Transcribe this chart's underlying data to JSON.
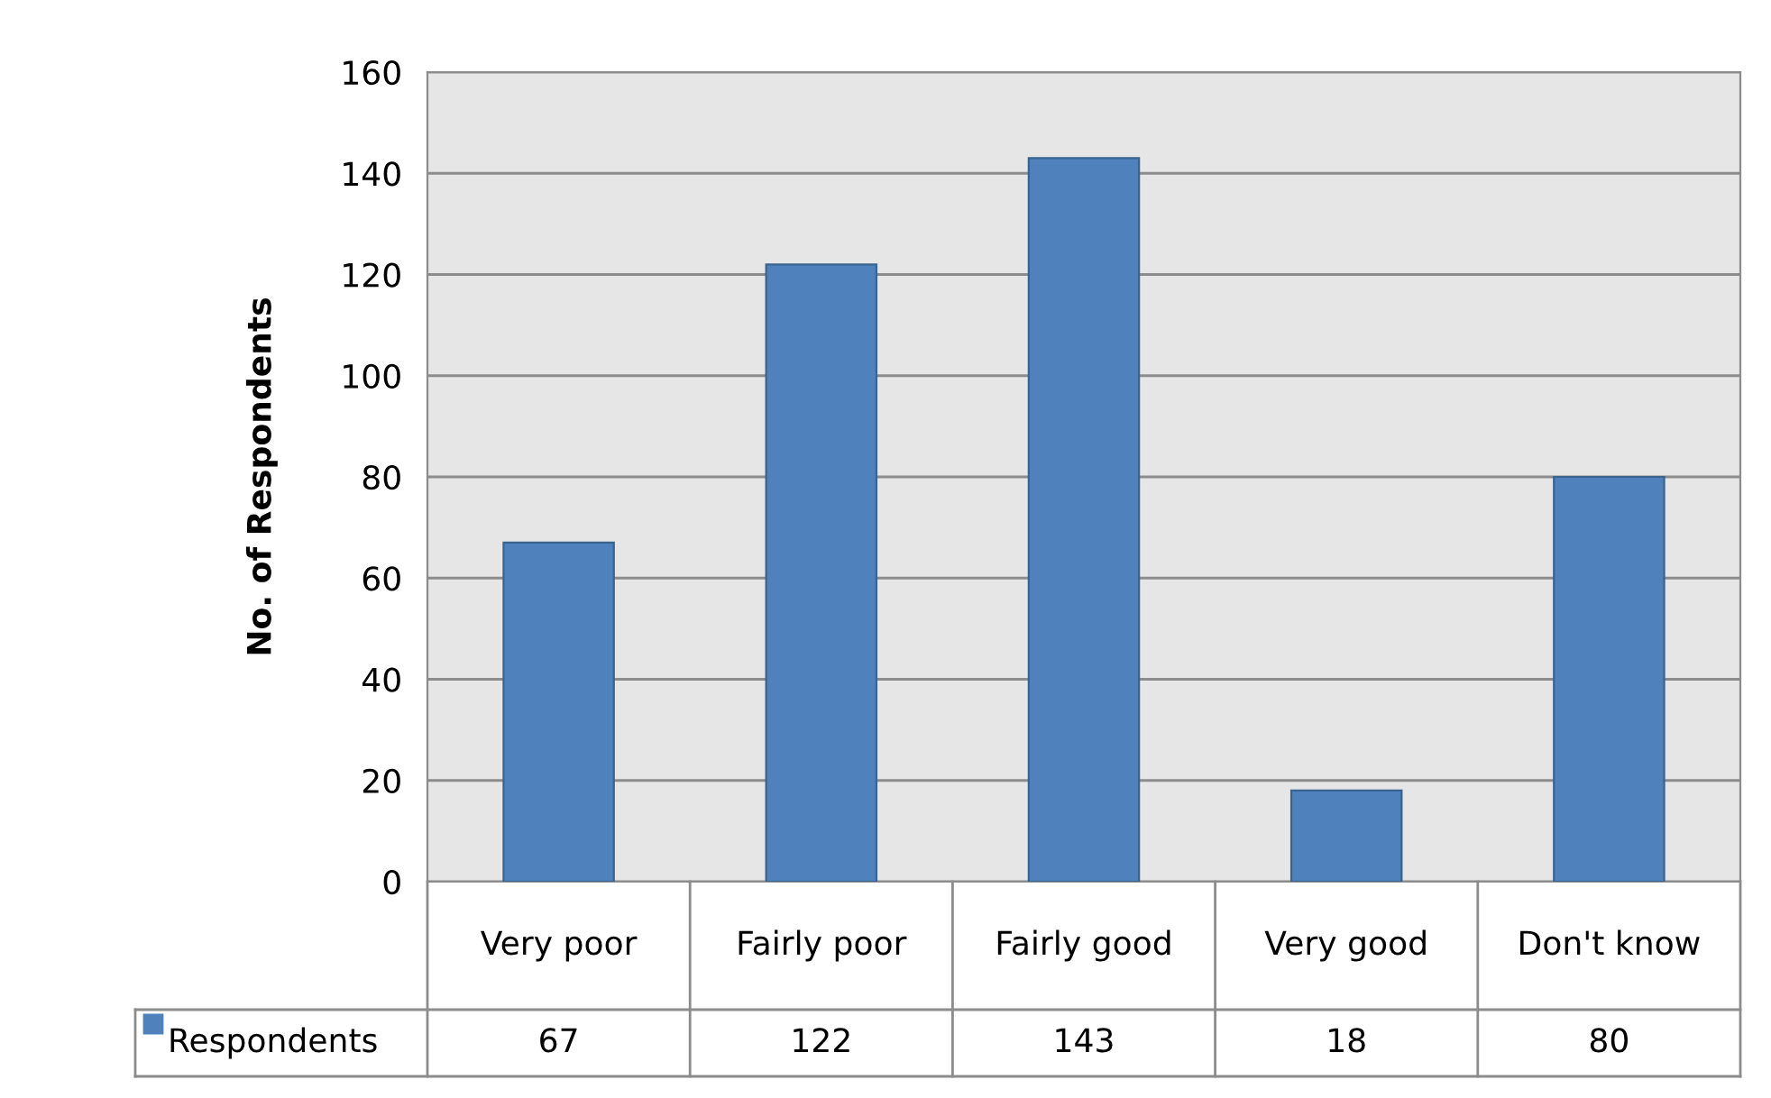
{
  "chart_data": {
    "type": "bar",
    "ylabel": "No. of Respondents",
    "categories": [
      "Very poor",
      "Fairly poor",
      "Fairly good",
      "Very good",
      "Don't know"
    ],
    "series": [
      {
        "name": "Respondents",
        "color": "#4f81bd",
        "values": [
          67,
          122,
          143,
          18,
          80
        ]
      }
    ],
    "ylim": [
      0,
      160
    ],
    "yticks": [
      0,
      20,
      40,
      60,
      80,
      100,
      120,
      140,
      160
    ],
    "grid": "y",
    "legend": "bottom",
    "data_labels": true
  }
}
